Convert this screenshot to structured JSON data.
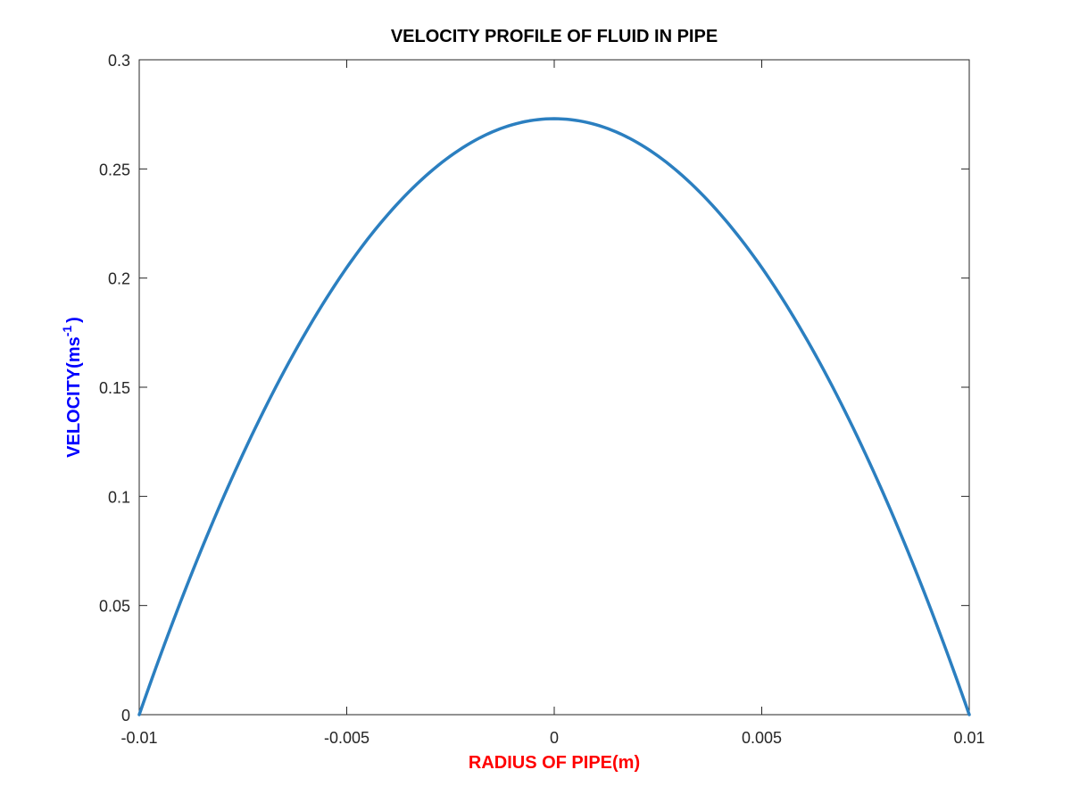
{
  "chart_data": {
    "type": "line",
    "title": "VELOCITY PROFILE OF FLUID IN PIPE",
    "xlabel": "RADIUS OF PIPE(m)",
    "ylabel": {
      "main": "VELOCITY(ms",
      "superscript": "-1",
      "close": ")"
    },
    "xlim": [
      -0.01,
      0.01
    ],
    "ylim": [
      0,
      0.3
    ],
    "x_ticks": [
      -0.01,
      -0.005,
      0,
      0.005,
      0.01
    ],
    "x_tick_labels": [
      "-0.01",
      "-0.005",
      "0",
      "0.005",
      "0.01"
    ],
    "y_ticks": [
      0,
      0.05,
      0.1,
      0.15,
      0.2,
      0.25,
      0.3
    ],
    "y_tick_labels": [
      "0",
      "0.05",
      "0.1",
      "0.15",
      "0.2",
      "0.25",
      "0.3"
    ],
    "grid": false,
    "box": true,
    "series": [
      {
        "color": "#2b7fc0",
        "x": [
          -0.01,
          -0.009,
          -0.008,
          -0.007,
          -0.006,
          -0.005,
          -0.004,
          -0.003,
          -0.002,
          -0.001,
          0,
          0.001,
          0.002,
          0.003,
          0.004,
          0.005,
          0.006,
          0.007,
          0.008,
          0.009,
          0.01
        ],
        "y": [
          0,
          0.0519,
          0.0983,
          0.1392,
          0.1747,
          0.2048,
          0.2293,
          0.2484,
          0.2621,
          0.2703,
          0.273,
          0.2703,
          0.2621,
          0.2484,
          0.2293,
          0.2048,
          0.1747,
          0.1392,
          0.0983,
          0.0519,
          0
        ]
      }
    ]
  },
  "colors": {
    "axis": "#262626",
    "line": "#2b7fc0",
    "xlabel": "#ff0000",
    "ylabel": "#0000ff"
  }
}
